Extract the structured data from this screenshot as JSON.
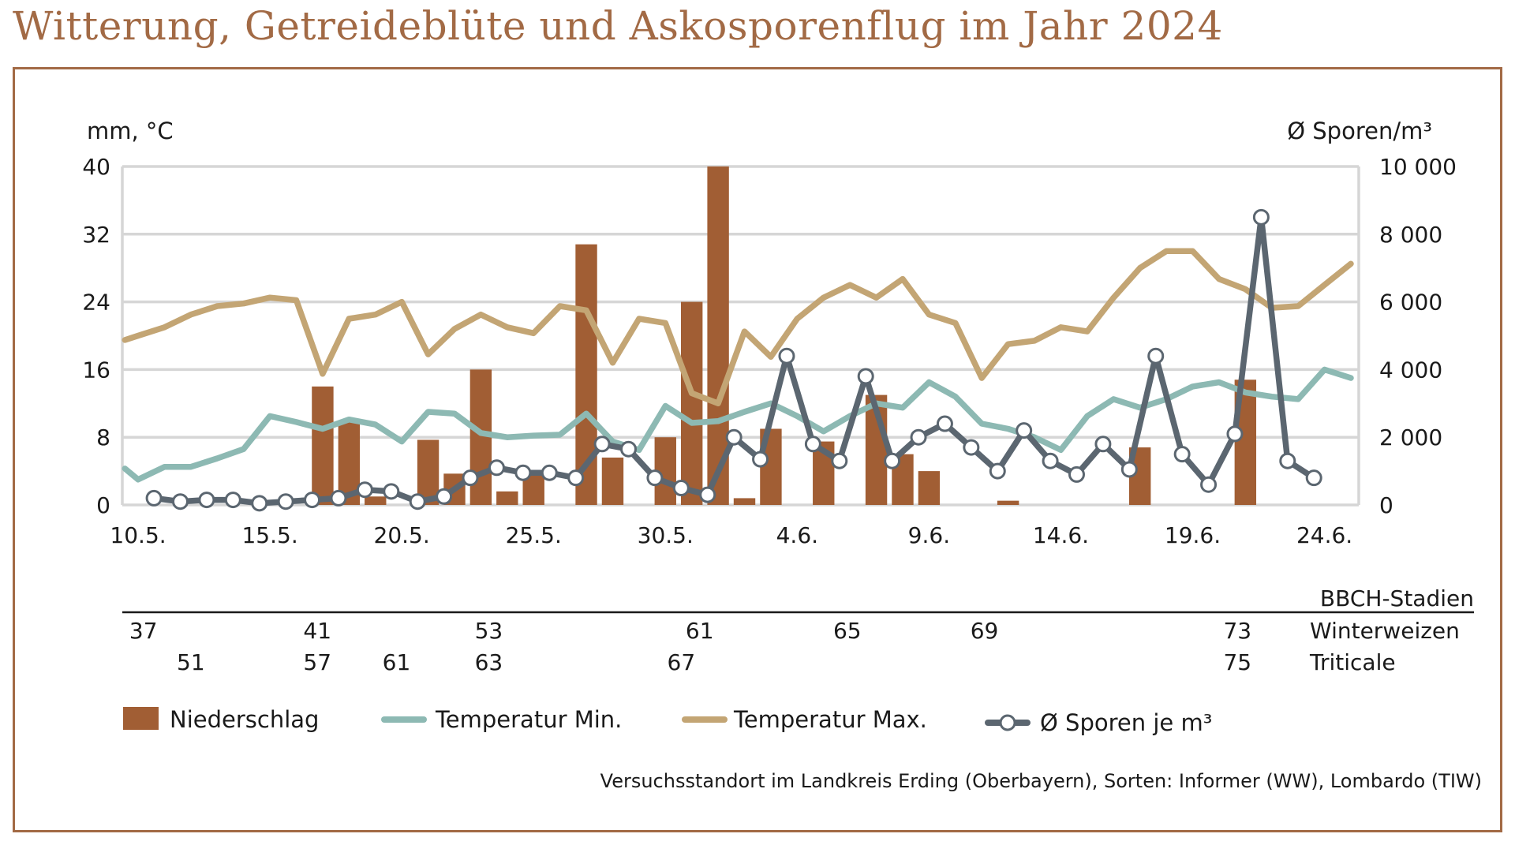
{
  "title": "Witterung, Getreideblüte und Askosporenflug im Jahr 2024",
  "footnote": "Versuchsstandort im Landkreis Erding (Oberbayern), Sorten: Informer (WW), Lombardo (TIW)",
  "colors": {
    "title": "#a26a45",
    "frame": "#a26a45",
    "bars": "#a15e34",
    "tmin": "#8db9b3",
    "tmax": "#c3a574",
    "spores": "#5b6670",
    "grid": "#d6d6d6"
  },
  "bbch": {
    "header": "BBCH-Stadien",
    "winterweizen": {
      "label": "Winterweizen",
      "stages": [
        {
          "day": 0.2,
          "value": "37"
        },
        {
          "day": 6.8,
          "value": "41"
        },
        {
          "day": 13.3,
          "value": "53"
        },
        {
          "day": 21.3,
          "value": "61"
        },
        {
          "day": 26.9,
          "value": "65"
        },
        {
          "day": 32.1,
          "value": "69"
        },
        {
          "day": 41.7,
          "value": "73"
        }
      ]
    },
    "triticale": {
      "label": "Triticale",
      "stages": [
        {
          "day": 2.0,
          "value": "51"
        },
        {
          "day": 6.8,
          "value": "57"
        },
        {
          "day": 9.8,
          "value": "61"
        },
        {
          "day": 13.3,
          "value": "63"
        },
        {
          "day": 20.6,
          "value": "67"
        },
        {
          "day": 41.7,
          "value": "75"
        }
      ]
    }
  },
  "chart_data": {
    "type": "bar+line",
    "title": "Witterung, Getreideblüte und Askosporenflug im Jahr 2024",
    "x_start": "10.5.",
    "x_unit": "day",
    "xlim": [
      -0.6,
      46.3
    ],
    "ylabel_left": "mm, °C",
    "ylabel_right": "Ø Sporen/m³",
    "ylim_left": [
      0,
      40
    ],
    "ylim_right": [
      0,
      10000
    ],
    "yticks_left": [
      "0",
      "8",
      "16",
      "24",
      "32",
      "40"
    ],
    "yticks_right": [
      "0",
      "2 000",
      "4 000",
      "6 000",
      "8 000",
      "10 000"
    ],
    "xticks": [
      {
        "day": 0,
        "label": "10.5."
      },
      {
        "day": 5,
        "label": "15.5."
      },
      {
        "day": 10,
        "label": "20.5."
      },
      {
        "day": 15,
        "label": "25.5."
      },
      {
        "day": 20,
        "label": "30.5."
      },
      {
        "day": 25,
        "label": "4.6."
      },
      {
        "day": 30,
        "label": "9.6."
      },
      {
        "day": 35,
        "label": "14.6."
      },
      {
        "day": 40,
        "label": "19.6."
      },
      {
        "day": 45,
        "label": "24.6."
      }
    ],
    "legend": [
      {
        "key": "precip",
        "label": "Niederschlag"
      },
      {
        "key": "tmin",
        "label": "Temperatur Min."
      },
      {
        "key": "tmax",
        "label": "Temperatur Max."
      },
      {
        "key": "spores",
        "label": "Ø Sporen je m³"
      }
    ],
    "precipitation_mm": [
      {
        "day": 7,
        "value": 14
      },
      {
        "day": 8,
        "value": 10
      },
      {
        "day": 9,
        "value": 1
      },
      {
        "day": 11,
        "value": 7.7
      },
      {
        "day": 12,
        "value": 3.7
      },
      {
        "day": 13,
        "value": 16
      },
      {
        "day": 14,
        "value": 1.6
      },
      {
        "day": 15,
        "value": 3.5
      },
      {
        "day": 17,
        "value": 30.8
      },
      {
        "day": 18,
        "value": 5.6
      },
      {
        "day": 20,
        "value": 8
      },
      {
        "day": 21,
        "value": 24
      },
      {
        "day": 22,
        "value": 40
      },
      {
        "day": 23,
        "value": 0.8
      },
      {
        "day": 24,
        "value": 9
      },
      {
        "day": 26,
        "value": 7.5
      },
      {
        "day": 28,
        "value": 13
      },
      {
        "day": 29,
        "value": 6
      },
      {
        "day": 30,
        "value": 4
      },
      {
        "day": 33,
        "value": 0.5
      },
      {
        "day": 38,
        "value": 6.8
      },
      {
        "day": 42,
        "value": 14.8
      }
    ],
    "temp_min_c": {
      "x": [
        -0.5,
        0,
        1,
        2,
        3,
        4,
        5,
        6,
        7,
        8,
        9,
        10,
        11,
        12,
        13,
        14,
        15,
        16,
        17,
        18,
        19,
        20,
        21,
        22,
        23,
        24,
        25,
        26,
        27,
        28,
        29,
        30,
        31,
        32,
        33,
        34,
        35,
        36,
        37,
        38,
        39,
        40,
        41,
        42,
        43,
        44,
        45,
        46
      ],
      "y": [
        4.3,
        3,
        4.5,
        4.5,
        5.5,
        6.6,
        10.5,
        9.8,
        9,
        10.1,
        9.5,
        7.5,
        11,
        10.8,
        8.5,
        8,
        8.2,
        8.3,
        10.8,
        7.5,
        6.5,
        11.7,
        9.7,
        9.9,
        11,
        12,
        10.5,
        8.7,
        10.5,
        12,
        11.5,
        14.5,
        12.8,
        9.6,
        9,
        8,
        6.5,
        10.5,
        12.5,
        11.5,
        12.5,
        14,
        14.5,
        13.3,
        12.8,
        12.5,
        16,
        15
      ]
    },
    "temp_max_c": {
      "x": [
        -0.5,
        0,
        1,
        2,
        3,
        4,
        5,
        6,
        7,
        8,
        9,
        10,
        11,
        12,
        13,
        14,
        15,
        16,
        17,
        18,
        19,
        20,
        21,
        22,
        23,
        24,
        25,
        26,
        27,
        28,
        29,
        30,
        31,
        32,
        33,
        34,
        35,
        36,
        37,
        38,
        39,
        40,
        41,
        42,
        43,
        44,
        45,
        46
      ],
      "y": [
        19.5,
        20,
        21,
        22.5,
        23.5,
        23.8,
        24.5,
        24.2,
        15.5,
        22,
        22.5,
        24,
        17.8,
        20.8,
        22.5,
        21,
        20.3,
        23.5,
        23,
        16.8,
        22,
        21.5,
        13.2,
        12,
        20.5,
        17.5,
        22,
        24.5,
        26,
        24.5,
        26.7,
        22.5,
        21.5,
        15,
        19,
        19.4,
        21,
        20.5,
        24.5,
        28,
        30,
        30,
        26.7,
        25.5,
        23.3,
        23.5,
        26,
        28.5
      ]
    },
    "spores_per_m3": {
      "x": [
        0.6,
        1.6,
        2.6,
        3.6,
        4.6,
        5.6,
        6.6,
        7.6,
        8.6,
        9.6,
        10.6,
        11.6,
        12.6,
        13.6,
        14.6,
        15.6,
        16.6,
        17.6,
        18.6,
        19.6,
        20.6,
        21.6,
        22.6,
        23.6,
        24.6,
        25.6,
        26.6,
        27.6,
        28.6,
        29.6,
        30.6,
        31.6,
        32.6,
        33.6,
        34.6,
        35.6,
        36.6,
        37.6,
        38.6,
        39.6,
        40.6,
        41.6,
        42.6,
        43.6,
        44.6
      ],
      "y": [
        200,
        100,
        150,
        150,
        50,
        100,
        150,
        200,
        450,
        400,
        100,
        250,
        800,
        1100,
        950,
        950,
        800,
        1800,
        1650,
        800,
        500,
        300,
        2000,
        1350,
        4400,
        1800,
        1300,
        3800,
        1300,
        2000,
        2400,
        1700,
        1000,
        2200,
        1300,
        900,
        1800,
        1050,
        4400,
        1500,
        600,
        2100,
        8500,
        1300,
        800
      ]
    }
  }
}
